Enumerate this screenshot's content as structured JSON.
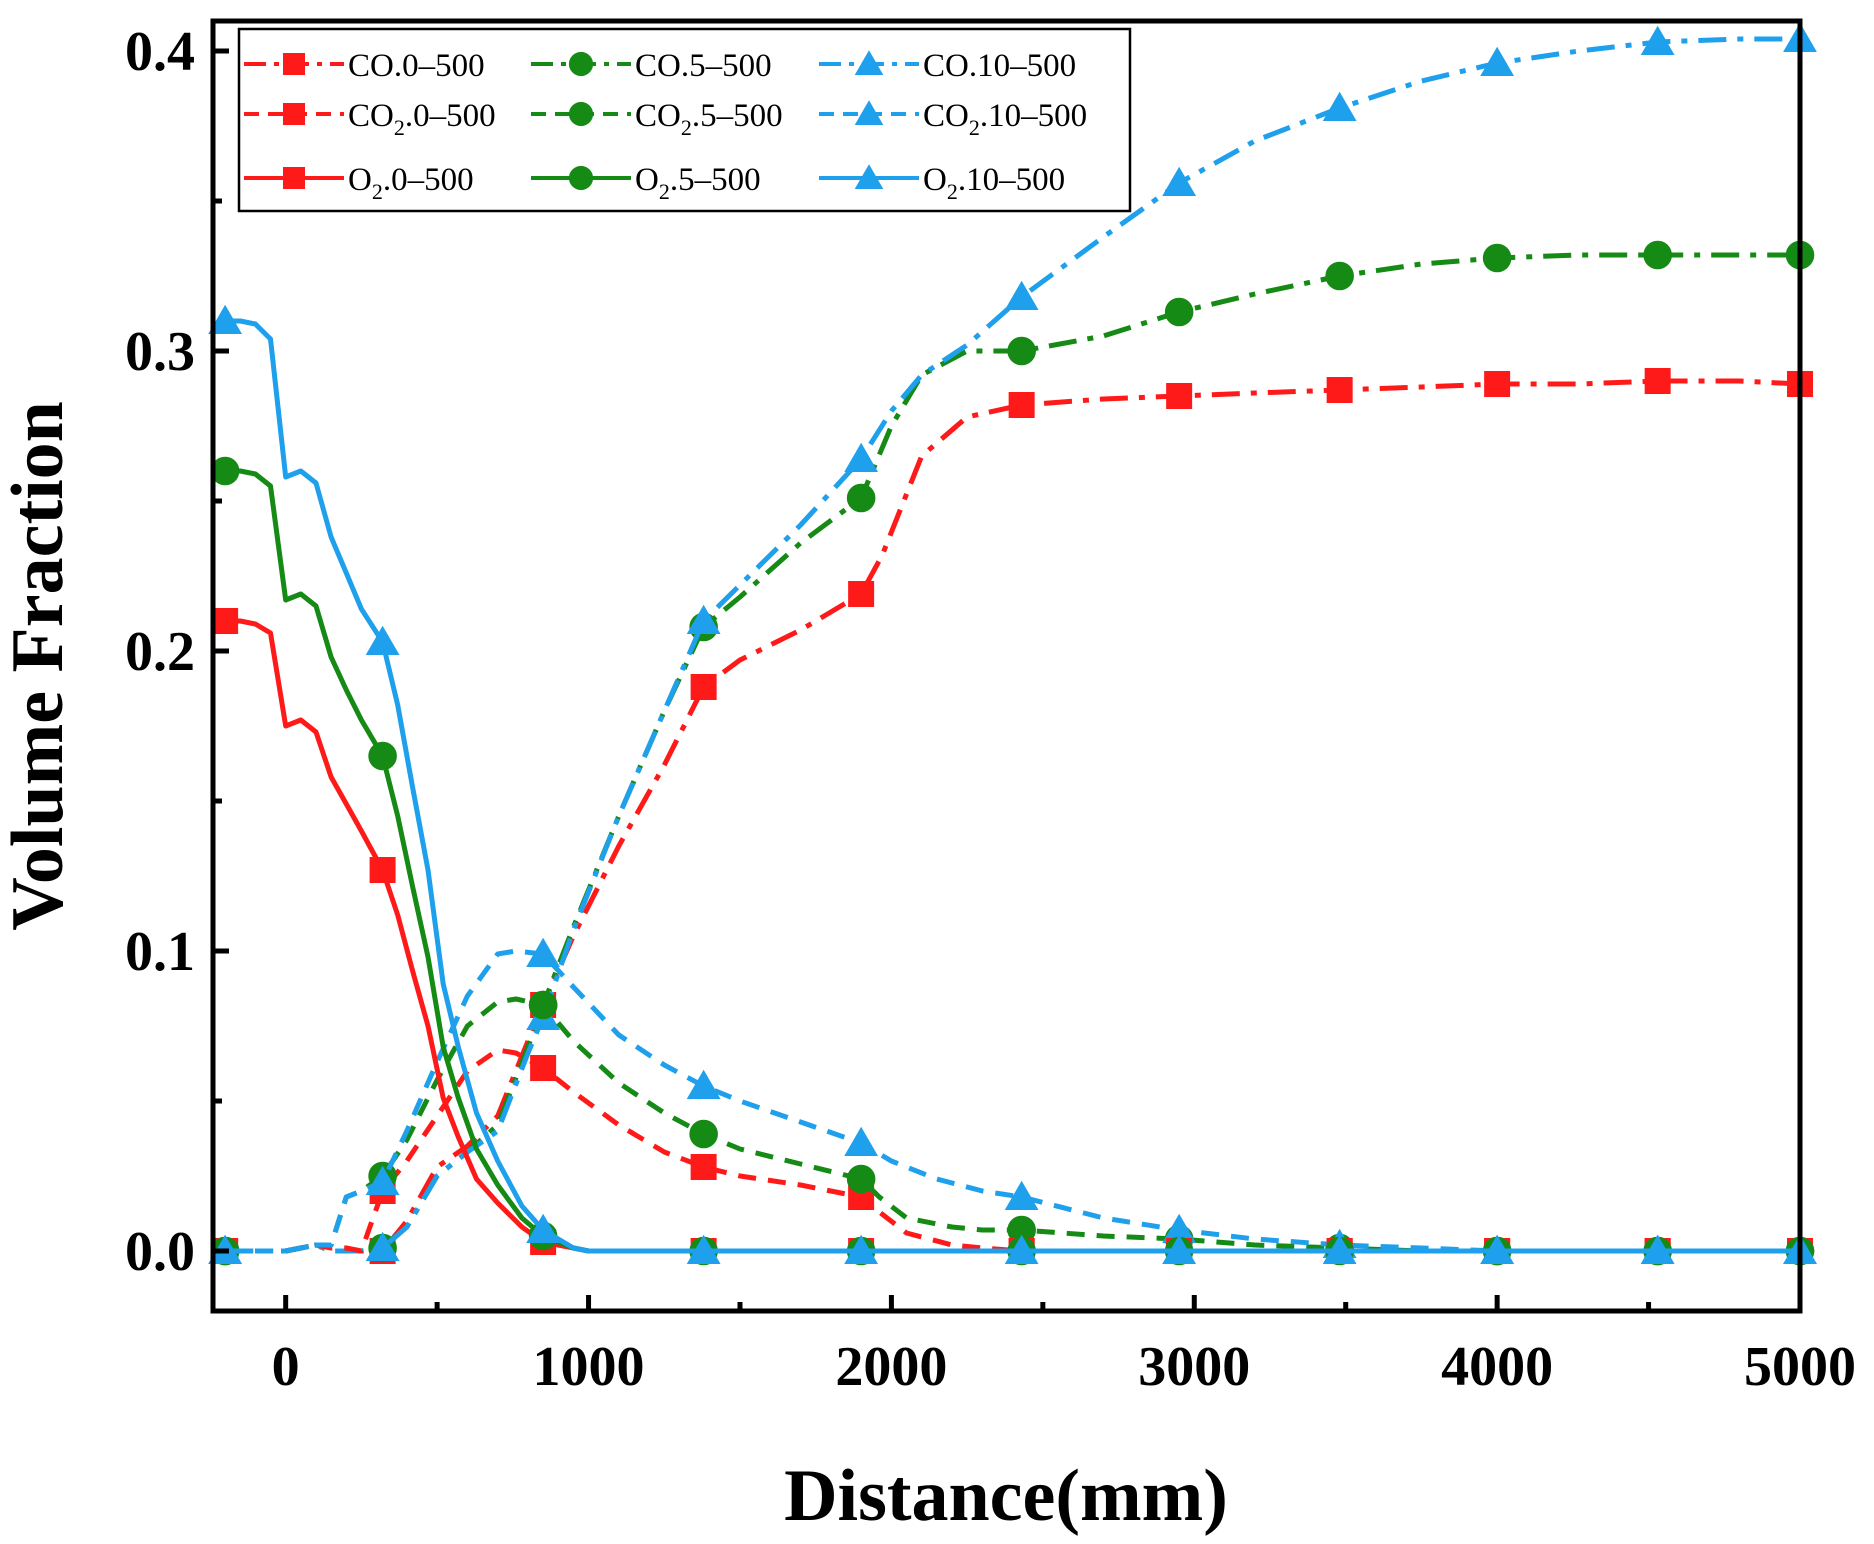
{
  "chart_data": {
    "type": "line",
    "title": "",
    "xlabel": "Distance(mm)",
    "ylabel": "Volume Fraction",
    "xlim": [
      -240,
      5000
    ],
    "ylim": [
      -0.02,
      0.41
    ],
    "xticks": [
      0,
      1000,
      2000,
      3000,
      4000,
      5000
    ],
    "xtick_labels": [
      "0",
      "1000",
      "2000",
      "3000",
      "4000",
      "5000"
    ],
    "yticks": [
      0.0,
      0.1,
      0.2,
      0.3,
      0.4
    ],
    "ytick_labels": [
      "0.0",
      "0.1",
      "0.2",
      "0.3",
      "0.4"
    ],
    "minor_yticks": [
      0.05,
      0.15,
      0.25,
      0.35
    ],
    "minor_xticks": [
      500,
      1500,
      2500,
      3500,
      4500
    ],
    "grid": false,
    "legend_position": "top-left",
    "marker_x": [
      -200,
      320,
      850,
      1380,
      1900,
      2430,
      2950,
      3480,
      4000,
      4530,
      5000
    ],
    "series": [
      {
        "name": "CO.0–500",
        "name_main": "CO",
        "name_sub": "",
        "name_rest": ".0–500",
        "color": "#ff1a1a",
        "dash": "dashdot",
        "marker": "square",
        "x": [
          -200,
          -100,
          -50,
          0,
          100,
          150,
          250,
          320,
          400,
          500,
          600,
          700,
          800,
          850,
          950,
          1100,
          1250,
          1380,
          1500,
          1700,
          1900,
          1970,
          2100,
          2250,
          2430,
          2700,
          2950,
          3200,
          3480,
          3750,
          4000,
          4270,
          4530,
          4800,
          5000
        ],
        "y": [
          0,
          0,
          0,
          0,
          0.002,
          0,
          0,
          0,
          0.01,
          0.028,
          0.035,
          0.045,
          0.07,
          0.082,
          0.105,
          0.135,
          0.162,
          0.188,
          0.197,
          0.207,
          0.219,
          0.232,
          0.265,
          0.278,
          0.282,
          0.284,
          0.285,
          0.286,
          0.287,
          0.288,
          0.289,
          0.289,
          0.29,
          0.29,
          0.289
        ]
      },
      {
        "name": "CO.5–500",
        "name_main": "CO",
        "name_sub": "",
        "name_rest": ".5–500",
        "color": "#158a15",
        "dash": "dashdot",
        "marker": "circle",
        "x": [
          -200,
          -100,
          -50,
          0,
          100,
          150,
          250,
          320,
          400,
          500,
          600,
          700,
          800,
          850,
          950,
          1100,
          1250,
          1380,
          1500,
          1700,
          1900,
          2000,
          2100,
          2250,
          2430,
          2700,
          2950,
          3200,
          3480,
          3750,
          4000,
          4270,
          4530,
          4800,
          5000
        ],
        "y": [
          0,
          0,
          0,
          0,
          0.002,
          0,
          0,
          0.001,
          0.008,
          0.025,
          0.033,
          0.042,
          0.068,
          0.082,
          0.108,
          0.145,
          0.18,
          0.208,
          0.218,
          0.236,
          0.251,
          0.275,
          0.292,
          0.3,
          0.3,
          0.305,
          0.313,
          0.319,
          0.325,
          0.329,
          0.331,
          0.332,
          0.332,
          0.332,
          0.332
        ]
      },
      {
        "name": "CO.10–500",
        "name_main": "CO",
        "name_sub": "",
        "name_rest": ".10–500",
        "color": "#1fa0ec",
        "dash": "dashdot",
        "marker": "triangle",
        "x": [
          -200,
          -100,
          -50,
          0,
          100,
          150,
          250,
          320,
          400,
          500,
          600,
          700,
          800,
          850,
          950,
          1100,
          1250,
          1380,
          1500,
          1700,
          1900,
          2000,
          2100,
          2250,
          2430,
          2700,
          2950,
          3200,
          3480,
          3750,
          4000,
          4270,
          4530,
          4800,
          5000
        ],
        "y": [
          0,
          0,
          0,
          0,
          0.002,
          0,
          0,
          0.001,
          0.008,
          0.025,
          0.033,
          0.04,
          0.066,
          0.078,
          0.107,
          0.145,
          0.18,
          0.21,
          0.222,
          0.242,
          0.264,
          0.28,
          0.292,
          0.302,
          0.318,
          0.338,
          0.356,
          0.37,
          0.381,
          0.39,
          0.396,
          0.4,
          0.403,
          0.404,
          0.404
        ]
      },
      {
        "name": "CO2.0–500",
        "name_main": "CO",
        "name_sub": "2",
        "name_rest": ".0–500",
        "color": "#ff1a1a",
        "dash": "dash",
        "marker": "square",
        "x": [
          -200,
          -100,
          -50,
          0,
          100,
          150,
          200,
          250,
          320,
          400,
          500,
          600,
          700,
          760,
          850,
          950,
          1100,
          1250,
          1380,
          1500,
          1700,
          1900,
          1960,
          2050,
          2200,
          2300,
          2430,
          2700,
          2950,
          3200,
          3480,
          3750,
          4000,
          4270,
          4530,
          4800,
          5000
        ],
        "y": [
          0,
          0,
          0,
          0,
          0.002,
          0.001,
          0.001,
          0,
          0.02,
          0.03,
          0.045,
          0.06,
          0.067,
          0.066,
          0.061,
          0.053,
          0.042,
          0.033,
          0.028,
          0.025,
          0.022,
          0.018,
          0.013,
          0.006,
          0.002,
          0.001,
          0,
          0,
          0,
          0,
          0,
          0,
          0,
          0,
          0,
          0,
          0
        ]
      },
      {
        "name": "CO2.5–500",
        "name_main": "CO",
        "name_sub": "2",
        "name_rest": ".5–500",
        "color": "#158a15",
        "dash": "dash",
        "marker": "circle",
        "x": [
          -200,
          -100,
          -50,
          0,
          100,
          150,
          200,
          250,
          320,
          400,
          500,
          600,
          700,
          760,
          850,
          950,
          1100,
          1250,
          1380,
          1500,
          1700,
          1900,
          1960,
          2050,
          2200,
          2300,
          2430,
          2700,
          2950,
          3200,
          3480,
          3750,
          4000,
          4270,
          4530,
          4800,
          5000
        ],
        "y": [
          0,
          0,
          0,
          0,
          0.002,
          0.002,
          0.018,
          0.02,
          0.025,
          0.037,
          0.057,
          0.075,
          0.083,
          0.084,
          0.082,
          0.07,
          0.056,
          0.046,
          0.039,
          0.034,
          0.029,
          0.024,
          0.018,
          0.011,
          0.008,
          0.007,
          0.007,
          0.005,
          0.004,
          0.002,
          0.001,
          0,
          0,
          0,
          0,
          0,
          0
        ]
      },
      {
        "name": "CO2.10–500",
        "name_main": "CO",
        "name_sub": "2",
        "name_rest": ".10–500",
        "color": "#1fa0ec",
        "dash": "dash",
        "marker": "triangle",
        "x": [
          -200,
          -100,
          -50,
          0,
          100,
          150,
          200,
          250,
          320,
          400,
          500,
          600,
          700,
          760,
          850,
          950,
          1100,
          1250,
          1380,
          1500,
          1700,
          1900,
          2000,
          2150,
          2300,
          2430,
          2700,
          2950,
          3200,
          3480,
          3750,
          4000,
          4270,
          4530,
          4800,
          5000
        ],
        "y": [
          0,
          0,
          0,
          0,
          0.002,
          0.002,
          0.018,
          0.02,
          0.023,
          0.04,
          0.063,
          0.085,
          0.099,
          0.1,
          0.099,
          0.088,
          0.072,
          0.062,
          0.055,
          0.05,
          0.043,
          0.036,
          0.03,
          0.024,
          0.02,
          0.018,
          0.011,
          0.007,
          0.004,
          0.002,
          0.001,
          0,
          0,
          0,
          0,
          0
        ]
      },
      {
        "name": "O2.0–500",
        "name_main": "O",
        "name_sub": "2",
        "name_rest": ".0–500",
        "color": "#ff1a1a",
        "dash": "solid",
        "marker": "square",
        "x": [
          -200,
          -150,
          -100,
          -50,
          0,
          50,
          100,
          150,
          200,
          250,
          320,
          370,
          420,
          470,
          520,
          570,
          630,
          700,
          780,
          850,
          950,
          1000,
          1100,
          1380,
          1900,
          2430,
          2950,
          3480,
          4000,
          4530,
          5000
        ],
        "y": [
          0.21,
          0.21,
          0.209,
          0.206,
          0.175,
          0.177,
          0.173,
          0.158,
          0.149,
          0.14,
          0.127,
          0.112,
          0.093,
          0.075,
          0.051,
          0.038,
          0.024,
          0.016,
          0.008,
          0.003,
          0.001,
          0,
          0,
          0,
          0,
          0,
          0,
          0,
          0,
          0,
          0
        ]
      },
      {
        "name": "O2.5–500",
        "name_main": "O",
        "name_sub": "2",
        "name_rest": ".5–500",
        "color": "#158a15",
        "dash": "solid",
        "marker": "circle",
        "x": [
          -200,
          -150,
          -100,
          -50,
          0,
          50,
          100,
          150,
          200,
          250,
          320,
          370,
          420,
          470,
          520,
          570,
          630,
          700,
          780,
          850,
          950,
          1000,
          1100,
          1380,
          1900,
          2430,
          2950,
          3480,
          4000,
          4530,
          5000
        ],
        "y": [
          0.26,
          0.26,
          0.259,
          0.255,
          0.217,
          0.219,
          0.215,
          0.198,
          0.187,
          0.177,
          0.165,
          0.145,
          0.121,
          0.098,
          0.068,
          0.051,
          0.034,
          0.022,
          0.011,
          0.005,
          0.001,
          0,
          0,
          0,
          0,
          0,
          0,
          0,
          0,
          0,
          0
        ]
      },
      {
        "name": "O2.10–500",
        "name_main": "O",
        "name_sub": "2",
        "name_rest": ".10–500",
        "color": "#1fa0ec",
        "dash": "solid",
        "marker": "triangle",
        "x": [
          -200,
          -150,
          -100,
          -50,
          0,
          50,
          100,
          150,
          200,
          250,
          320,
          370,
          420,
          470,
          520,
          570,
          630,
          700,
          780,
          850,
          950,
          1000,
          1100,
          1380,
          1900,
          2430,
          2950,
          3480,
          4000,
          4530,
          5000
        ],
        "y": [
          0.31,
          0.31,
          0.309,
          0.304,
          0.258,
          0.26,
          0.256,
          0.238,
          0.226,
          0.214,
          0.203,
          0.182,
          0.154,
          0.127,
          0.089,
          0.068,
          0.046,
          0.03,
          0.015,
          0.007,
          0.001,
          0,
          0,
          0,
          0,
          0,
          0,
          0,
          0,
          0,
          0
        ]
      }
    ]
  }
}
